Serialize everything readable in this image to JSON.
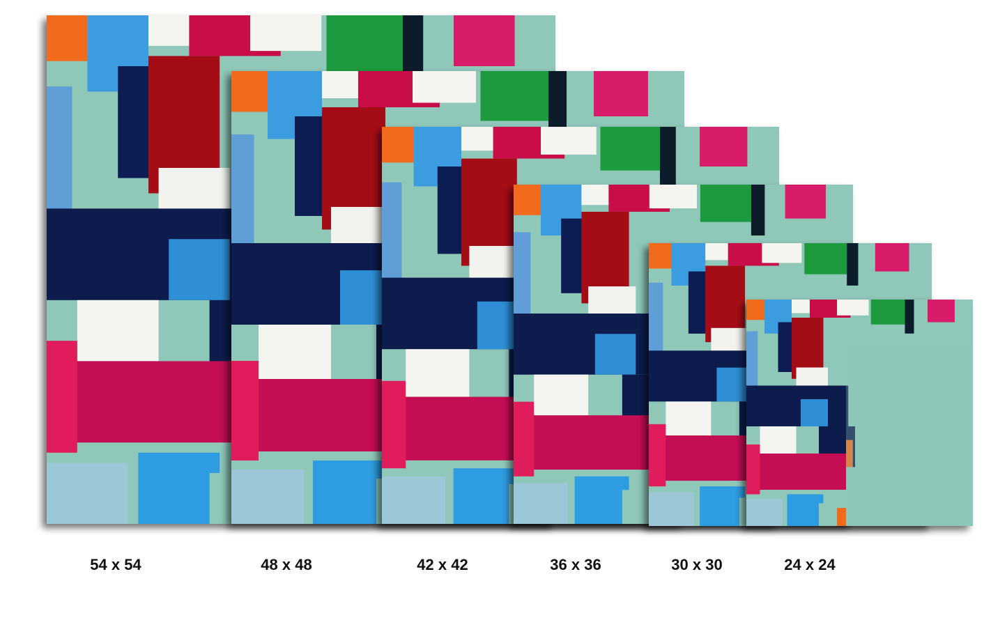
{
  "size_labels": [
    "54 x 54",
    "48 x 48",
    "42 x 42",
    "36 x 36",
    "30 x 30",
    "24 x 24"
  ]
}
